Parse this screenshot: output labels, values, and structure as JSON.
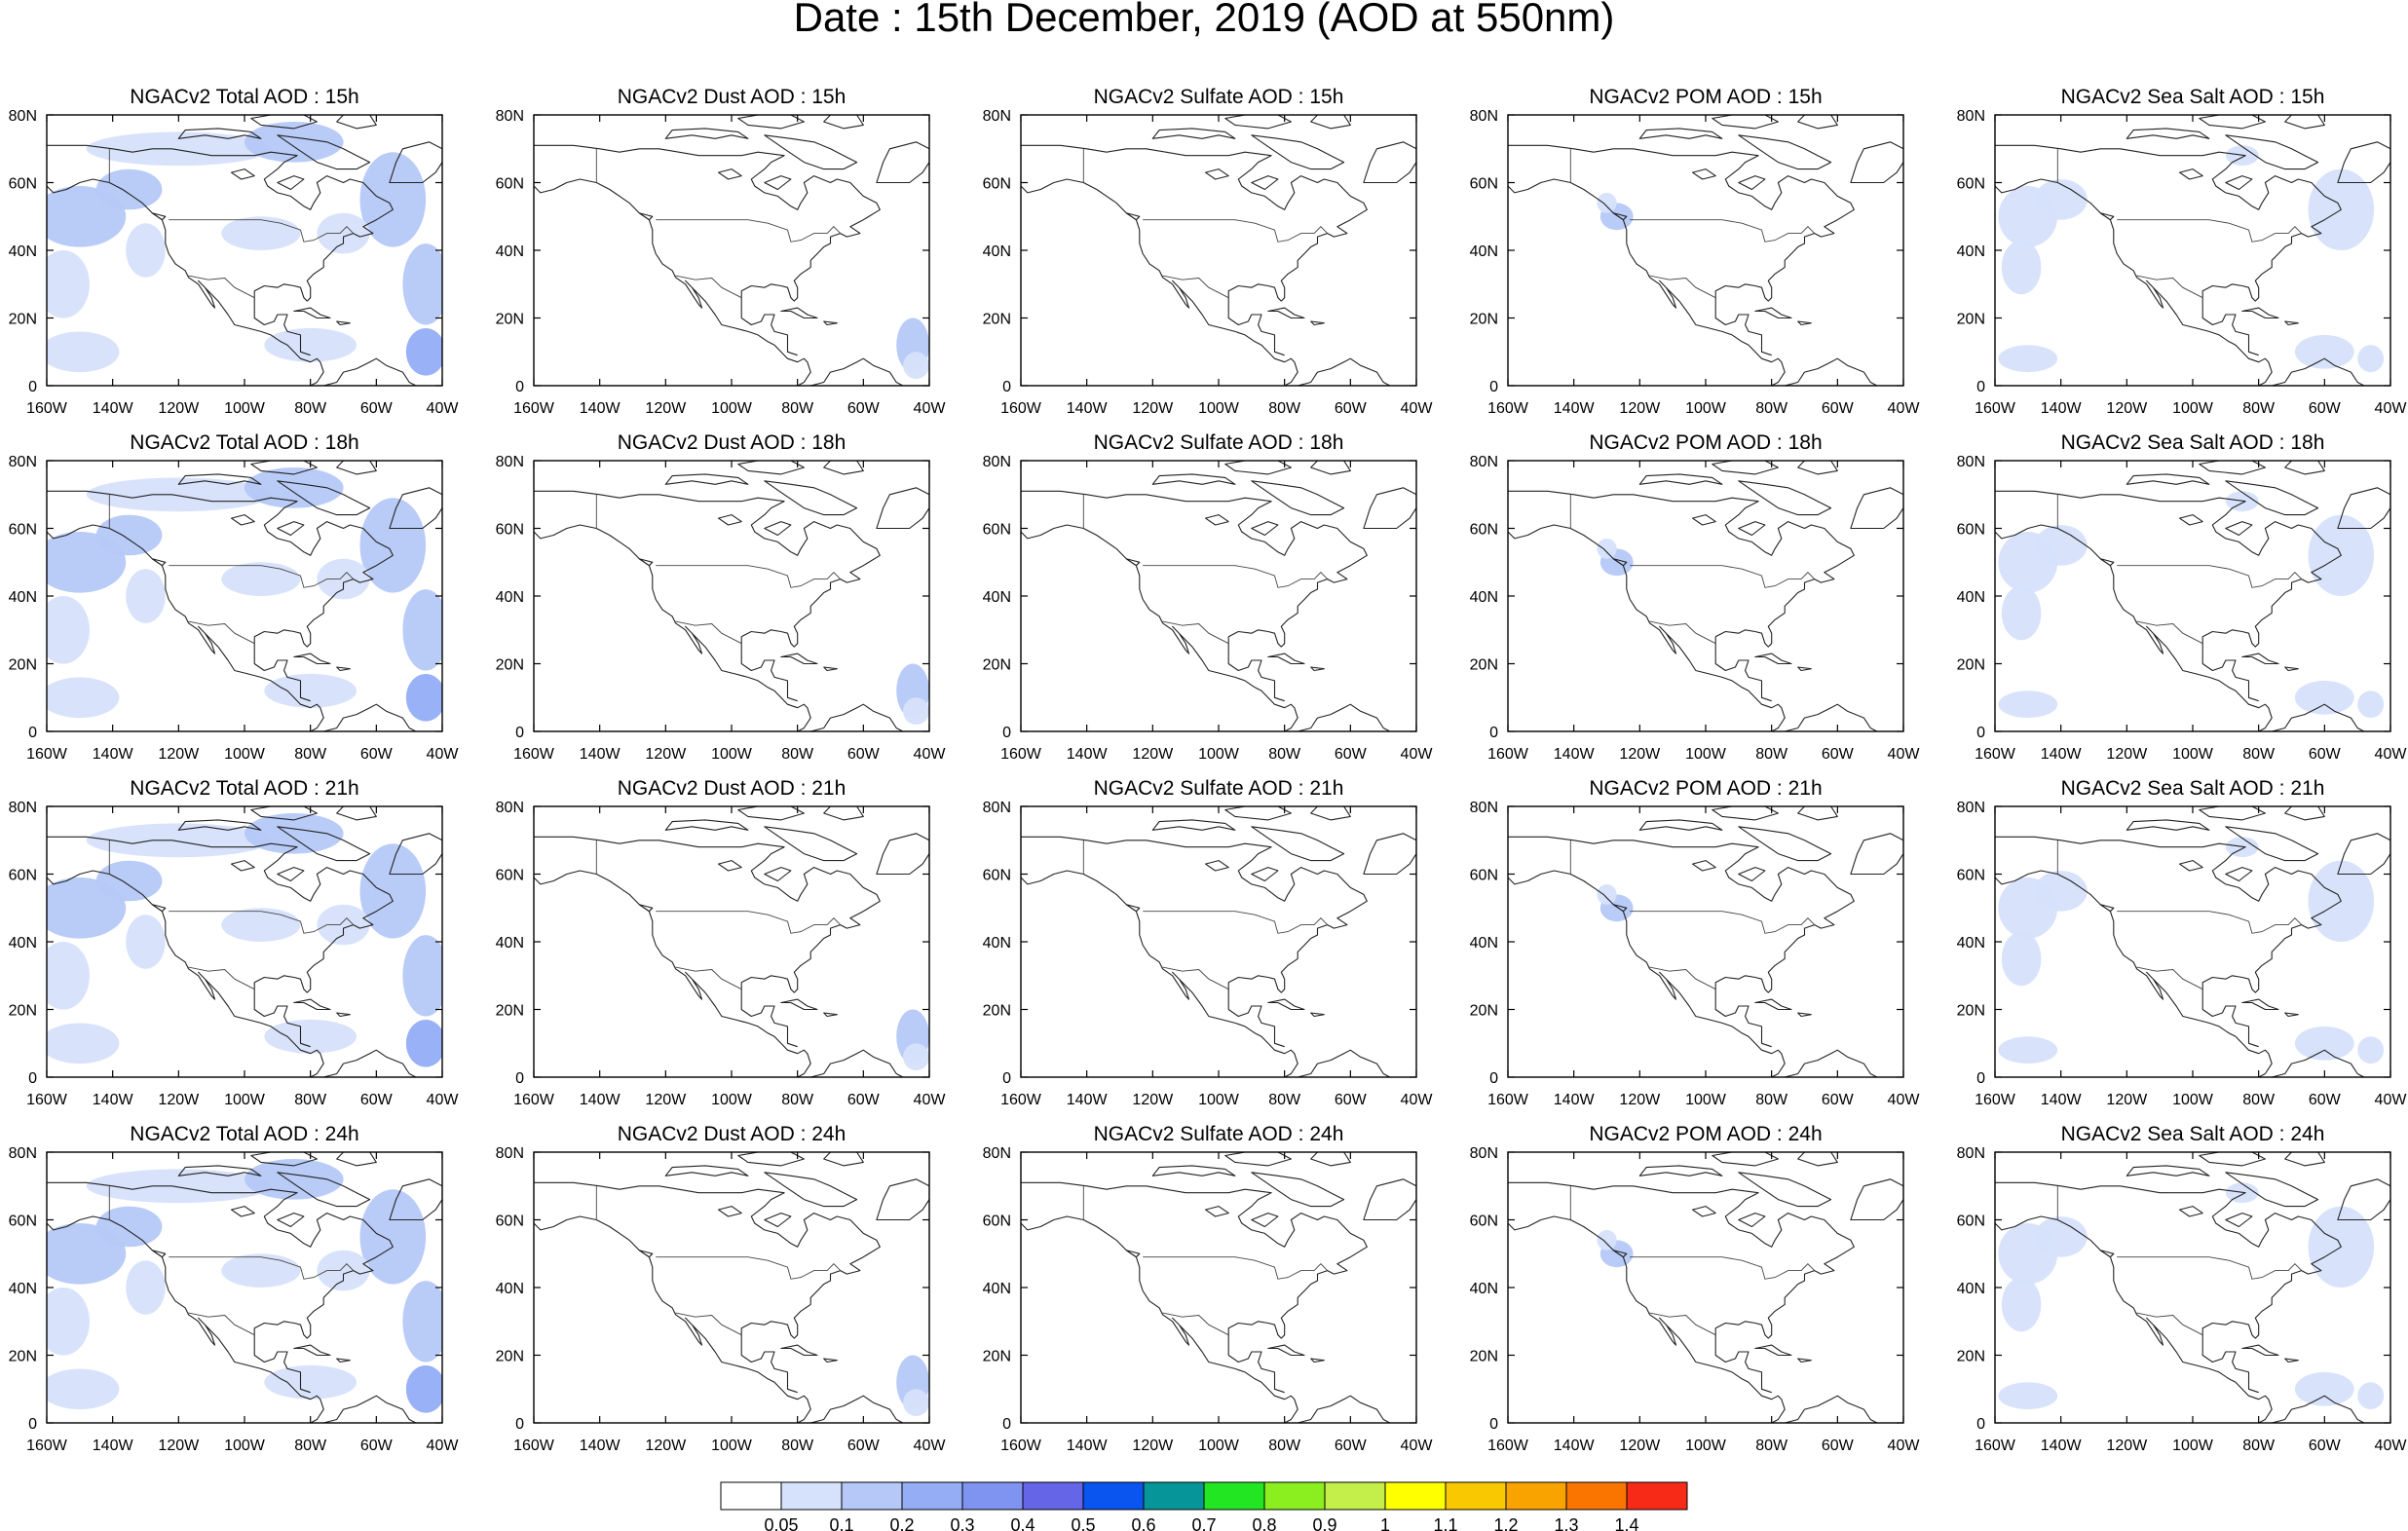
{
  "figure": {
    "title": "Date : 15th December, 2019 (AOD at 550nm)"
  },
  "map": {
    "lon_ticks": [
      "160W",
      "140W",
      "120W",
      "100W",
      "80W",
      "60W",
      "40W"
    ],
    "lat_ticks": [
      "80N",
      "60N",
      "40N",
      "20N",
      "0"
    ],
    "lon_range": [
      -160,
      -40
    ],
    "lat_range": [
      0,
      80
    ]
  },
  "panel_rows": [
    {
      "hour": "15h",
      "panels": [
        {
          "title": "NGACv2 Total AOD : 15h",
          "species": "total"
        },
        {
          "title": "NGACv2 Dust AOD : 15h",
          "species": "dust"
        },
        {
          "title": "NGACv2 Sulfate AOD : 15h",
          "species": "sulfate"
        },
        {
          "title": "NGACv2 POM AOD : 15h",
          "species": "pom"
        },
        {
          "title": "NGACv2 Sea Salt AOD : 15h",
          "species": "seasalt"
        }
      ]
    },
    {
      "hour": "18h",
      "panels": [
        {
          "title": "NGACv2 Total AOD : 18h",
          "species": "total"
        },
        {
          "title": "NGACv2 Dust AOD : 18h",
          "species": "dust"
        },
        {
          "title": "NGACv2 Sulfate AOD : 18h",
          "species": "sulfate"
        },
        {
          "title": "NGACv2 POM AOD : 18h",
          "species": "pom"
        },
        {
          "title": "NGACv2 Sea Salt AOD : 18h",
          "species": "seasalt"
        }
      ]
    },
    {
      "hour": "21h",
      "panels": [
        {
          "title": "NGACv2 Total AOD : 21h",
          "species": "total"
        },
        {
          "title": "NGACv2 Dust AOD : 21h",
          "species": "dust"
        },
        {
          "title": "NGACv2 Sulfate AOD : 21h",
          "species": "sulfate"
        },
        {
          "title": "NGACv2 POM AOD : 21h",
          "species": "pom"
        },
        {
          "title": "NGACv2 Sea Salt AOD : 21h",
          "species": "seasalt"
        }
      ]
    },
    {
      "hour": "24h",
      "panels": [
        {
          "title": "NGACv2 Total AOD : 24h",
          "species": "total"
        },
        {
          "title": "NGACv2 Dust AOD : 24h",
          "species": "dust"
        },
        {
          "title": "NGACv2 Sulfate AOD : 24h",
          "species": "sulfate"
        },
        {
          "title": "NGACv2 POM AOD : 24h",
          "species": "pom"
        },
        {
          "title": "NGACv2 Sea Salt  AOD : 24h",
          "species": "seasalt"
        }
      ]
    }
  ],
  "colorbar": {
    "labels": [
      "0.05",
      "0.1",
      "0.2",
      "0.3",
      "0.4",
      "0.5",
      "0.6",
      "0.7",
      "0.8",
      "0.9",
      "1",
      "1.1",
      "1.2",
      "1.3",
      "1.4"
    ],
    "colors": [
      "#ffffff",
      "#d6e2fb",
      "#b5c8f7",
      "#94adf5",
      "#7f93f1",
      "#6565e8",
      "#0a55f0",
      "#06969a",
      "#23e623",
      "#8bef1f",
      "#c4ef4a",
      "#ffff00",
      "#f9c800",
      "#f9a300",
      "#f97500",
      "#f72a18"
    ]
  }
}
